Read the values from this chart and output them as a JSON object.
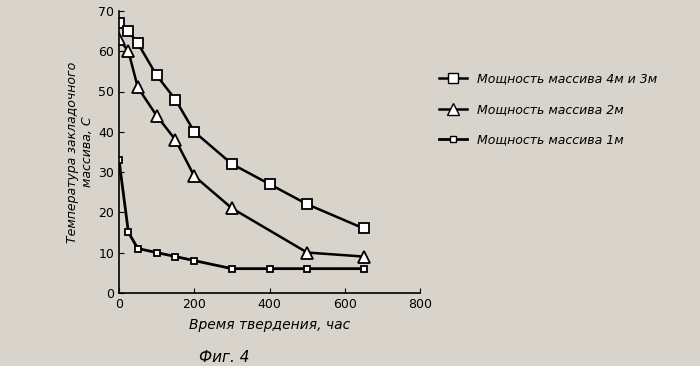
{
  "ylabel": "Температура закладочного\nмассива, С",
  "xlabel": "Время твердения, час",
  "xlim": [
    0,
    800
  ],
  "ylim": [
    0,
    70
  ],
  "xticks": [
    0,
    200,
    400,
    600,
    800
  ],
  "yticks": [
    0,
    10,
    20,
    30,
    40,
    50,
    60,
    70
  ],
  "series": [
    {
      "label": "Мощность массива 4м и 3м",
      "marker": "s",
      "x": [
        0,
        25,
        50,
        100,
        150,
        200,
        300,
        400,
        500,
        650
      ],
      "y": [
        67,
        65,
        62,
        54,
        48,
        40,
        32,
        27,
        22,
        16
      ]
    },
    {
      "label": "Мощность массива 2м",
      "marker": "^",
      "x": [
        0,
        25,
        50,
        100,
        150,
        200,
        300,
        500,
        650
      ],
      "y": [
        63,
        60,
        51,
        44,
        38,
        29,
        21,
        10,
        9
      ]
    },
    {
      "label": "Мощность массива 1м",
      "marker": "s",
      "x": [
        0,
        25,
        50,
        100,
        150,
        200,
        300,
        400,
        500,
        650
      ],
      "y": [
        33,
        15,
        11,
        10,
        9,
        8,
        6,
        6,
        6,
        6
      ]
    }
  ],
  "line_color": "#000000",
  "background_color": "#d8d4cc",
  "plot_bg_color": "#d8d4cc",
  "fig_caption": "Фиг. 4",
  "markers": [
    "s",
    "^",
    "s"
  ],
  "markersizes": [
    7,
    8,
    5
  ],
  "linewidths": [
    1.8,
    1.8,
    2.0
  ]
}
